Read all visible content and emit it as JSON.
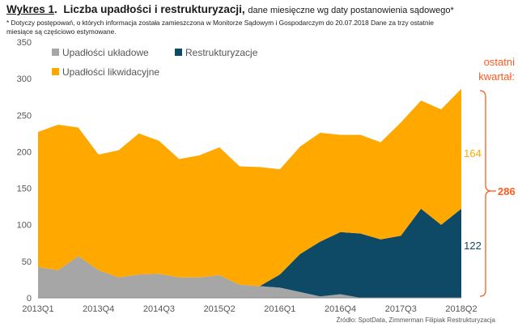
{
  "header": {
    "label": "Wykres 1",
    "separator": ".",
    "title": "Liczba upadłości i restrukturyzacji,",
    "subtitle": "dane miesięczne wg daty postanowienia sądowego*"
  },
  "note": "* Dotyczy postępowań, o których informacja została zamieszczona w Monitorze Sądowym i Gospodarczym do 20.07.2018 Dane za trzy ostatnie miesiące są częściowo estymowane.",
  "source": "Źródło: SpotData, Zimmerman Filipiak Restrukturyzacja",
  "annotation": {
    "label_line1": "ostatni",
    "label_line2": "kwartał:",
    "total": "286",
    "liq_value": "164",
    "restr_value": "122"
  },
  "colors": {
    "liquidation": "#FFA800",
    "composition": "#A6A6A6",
    "restructuring": "#0E4A66",
    "accent": "#FF5A1F"
  },
  "chart_data": {
    "type": "area",
    "stacked": true,
    "x": [
      "2013Q1",
      "2013Q2",
      "2013Q3",
      "2013Q4",
      "2014Q1",
      "2014Q2",
      "2014Q3",
      "2014Q4",
      "2015Q1",
      "2015Q2",
      "2015Q3",
      "2015Q4",
      "2016Q1",
      "2016Q2",
      "2016Q3",
      "2016Q4",
      "2017Q1",
      "2017Q2",
      "2017Q3",
      "2017Q4",
      "2018Q1",
      "2018Q2"
    ],
    "x_tick_labels": [
      "2013Q1",
      "2013Q4",
      "2014Q3",
      "2015Q2",
      "2016Q1",
      "2016Q4",
      "2017Q3",
      "2018Q2"
    ],
    "series": [
      {
        "name": "Upadłości układowe",
        "color": "#A6A6A6",
        "values": [
          42,
          38,
          57,
          38,
          28,
          32,
          33,
          28,
          28,
          31,
          18,
          16,
          14,
          8,
          2,
          5,
          0,
          0,
          0,
          0,
          0,
          0
        ]
      },
      {
        "name": "Restrukturyzacje",
        "color": "#0E4A66",
        "values": [
          0,
          0,
          0,
          0,
          0,
          0,
          0,
          0,
          0,
          0,
          0,
          0,
          18,
          52,
          75,
          85,
          88,
          80,
          85,
          122,
          100,
          122
        ]
      },
      {
        "name": "Upadłości likwidacyjne",
        "color": "#FFA800",
        "values": [
          185,
          199,
          176,
          158,
          174,
          193,
          182,
          162,
          167,
          175,
          162,
          163,
          144,
          147,
          149,
          133,
          135,
          133,
          155,
          148,
          158,
          164
        ]
      }
    ],
    "ylim": [
      0,
      350
    ],
    "yticks": [
      0,
      50,
      100,
      150,
      200,
      250,
      300,
      350
    ],
    "legend_position": "top-left",
    "grid": false
  }
}
